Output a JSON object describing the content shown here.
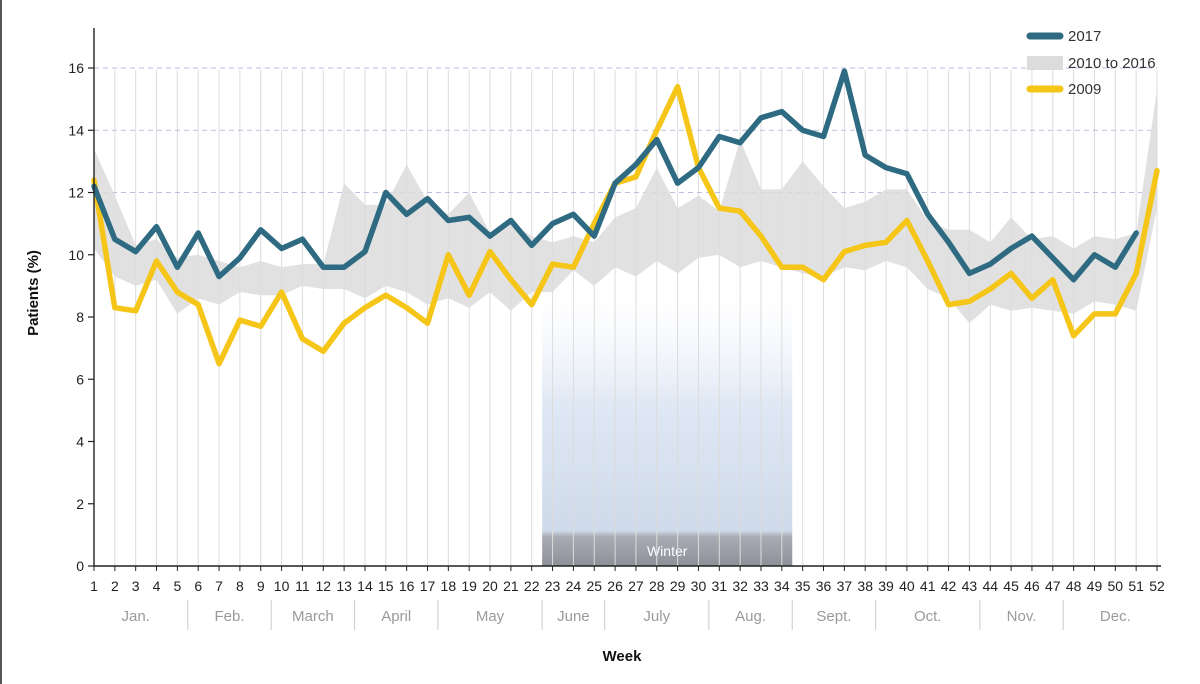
{
  "chart_data": {
    "type": "line",
    "xlabel": "Week",
    "ylabel": "Patients (%)",
    "ylim": [
      0,
      17
    ],
    "yticks": [
      0,
      2,
      4,
      6,
      8,
      10,
      12,
      14,
      16
    ],
    "x": [
      1,
      2,
      3,
      4,
      5,
      6,
      7,
      8,
      9,
      10,
      11,
      12,
      13,
      14,
      15,
      16,
      17,
      18,
      19,
      20,
      21,
      22,
      23,
      24,
      25,
      26,
      27,
      28,
      29,
      30,
      31,
      32,
      33,
      34,
      35,
      36,
      37,
      38,
      39,
      40,
      41,
      42,
      43,
      44,
      45,
      46,
      47,
      48,
      49,
      50,
      51,
      52
    ],
    "months": [
      {
        "label": "Jan.",
        "start": 1,
        "end": 5
      },
      {
        "label": "Feb.",
        "start": 6,
        "end": 9
      },
      {
        "label": "March",
        "start": 10,
        "end": 13
      },
      {
        "label": "April",
        "start": 14,
        "end": 17
      },
      {
        "label": "May",
        "start": 18,
        "end": 22
      },
      {
        "label": "June",
        "start": 23,
        "end": 25
      },
      {
        "label": "July",
        "start": 26,
        "end": 30
      },
      {
        "label": "Aug.",
        "start": 31,
        "end": 34
      },
      {
        "label": "Sept.",
        "start": 35,
        "end": 38
      },
      {
        "label": "Oct.",
        "start": 39,
        "end": 43
      },
      {
        "label": "Nov.",
        "start": 44,
        "end": 47
      },
      {
        "label": "Dec.",
        "start": 48,
        "end": 52
      }
    ],
    "winter": {
      "label": "Winter",
      "start_week": 23,
      "end_week": 34
    },
    "series": [
      {
        "name": "2017",
        "kind": "line",
        "color": "#2e6b82",
        "values": [
          12.2,
          10.5,
          10.1,
          10.9,
          9.6,
          10.7,
          9.3,
          9.9,
          10.8,
          10.2,
          10.5,
          9.6,
          9.6,
          10.1,
          12.0,
          11.3,
          11.8,
          11.1,
          11.2,
          10.6,
          11.1,
          10.3,
          11.0,
          11.3,
          10.6,
          12.3,
          12.9,
          13.7,
          12.3,
          12.8,
          13.8,
          13.6,
          14.4,
          14.6,
          14.0,
          13.8,
          15.9,
          13.2,
          12.8,
          12.6,
          11.3,
          10.4,
          9.4,
          9.7,
          10.2,
          10.6,
          9.9,
          9.2,
          10.0,
          9.6,
          10.7,
          null
        ]
      },
      {
        "name": "2010 to 2016",
        "kind": "band",
        "color": "#dcdcdc",
        "lower": [
          10.2,
          9.3,
          9.0,
          9.2,
          8.1,
          8.6,
          8.4,
          8.8,
          8.7,
          8.7,
          9.0,
          8.9,
          8.9,
          8.6,
          9.0,
          8.8,
          8.4,
          8.6,
          8.3,
          8.8,
          8.2,
          8.8,
          8.8,
          9.5,
          9.0,
          9.6,
          9.3,
          9.8,
          9.4,
          9.9,
          10.0,
          9.6,
          9.8,
          9.6,
          9.4,
          9.3,
          9.6,
          9.5,
          9.8,
          9.6,
          8.9,
          8.6,
          7.8,
          8.4,
          8.2,
          8.3,
          8.2,
          8.1,
          8.5,
          8.4,
          8.2,
          11.5
        ],
        "upper": [
          13.4,
          11.9,
          10.3,
          10.5,
          9.9,
          10.0,
          9.8,
          9.6,
          9.8,
          9.6,
          9.7,
          9.7,
          12.3,
          11.6,
          11.6,
          12.9,
          11.7,
          11.3,
          12.0,
          10.7,
          11.0,
          10.6,
          10.4,
          10.6,
          10.4,
          11.2,
          11.5,
          12.8,
          11.5,
          11.9,
          11.4,
          13.7,
          12.1,
          12.1,
          13.0,
          12.2,
          11.5,
          11.7,
          12.1,
          12.1,
          11.1,
          10.8,
          10.8,
          10.4,
          11.2,
          10.5,
          10.6,
          10.2,
          10.6,
          10.5,
          10.7,
          15.3
        ]
      },
      {
        "name": "2009",
        "kind": "line",
        "color": "#f5c518",
        "values": [
          12.4,
          8.3,
          8.2,
          9.8,
          8.8,
          8.4,
          6.5,
          7.9,
          7.7,
          8.8,
          7.3,
          6.9,
          7.8,
          8.3,
          8.7,
          8.3,
          7.8,
          10.0,
          8.7,
          10.1,
          9.2,
          8.4,
          9.7,
          9.6,
          11.0,
          12.3,
          12.5,
          14.0,
          15.4,
          12.8,
          11.5,
          11.4,
          10.6,
          9.6,
          9.6,
          9.2,
          10.1,
          10.3,
          10.4,
          11.1,
          9.8,
          8.4,
          8.5,
          8.9,
          9.4,
          8.6,
          9.2,
          7.4,
          8.1,
          8.1,
          9.4,
          12.7
        ]
      }
    ],
    "legend_position": "top-right",
    "grid": "horizontal dashed at 12, 14, 16"
  }
}
